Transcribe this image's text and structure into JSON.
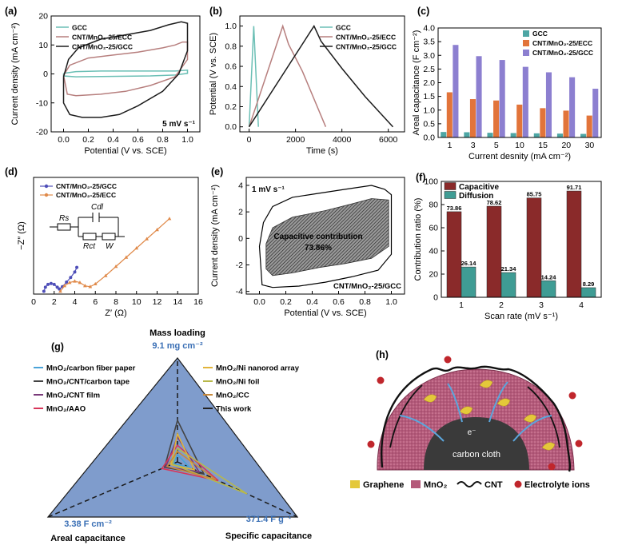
{
  "chart_data": [
    {
      "panel": "(a)",
      "type": "line",
      "xlabel": "Potential (V vs. SCE)",
      "ylabel": "Current density (mA cm⁻²)",
      "xlim": [
        -0.1,
        1.1
      ],
      "ylim": [
        -20,
        20
      ],
      "xticks": [
        "0.0",
        "0.2",
        "0.4",
        "0.6",
        "0.8",
        "1.0"
      ],
      "xtick_values": [
        0,
        0.2,
        0.4,
        0.6,
        0.8,
        1.0
      ],
      "yticks": [
        "-20",
        "-10",
        "0",
        "10",
        "20"
      ],
      "ytick_values": [
        -20,
        -10,
        0,
        10,
        20
      ],
      "annotation": "5 mV s⁻¹",
      "legend_position": "top-left",
      "series": [
        {
          "name": "GCC",
          "color": "#6bbfb5",
          "points": [
            [
              0,
              0.2
            ],
            [
              0.1,
              0.8
            ],
            [
              0.3,
              1.0
            ],
            [
              0.5,
              1.0
            ],
            [
              0.7,
              1.0
            ],
            [
              0.9,
              1.0
            ],
            [
              1.0,
              1.3
            ],
            [
              1.0,
              0.2
            ],
            [
              0.9,
              -0.4
            ],
            [
              0.7,
              -0.7
            ],
            [
              0.5,
              -0.8
            ],
            [
              0.3,
              -0.9
            ],
            [
              0.1,
              -1.0
            ],
            [
              0.0,
              -0.7
            ],
            [
              0,
              0.2
            ]
          ]
        },
        {
          "name": "CNT/MnO₂-25/ECC",
          "color": "#b77f7e",
          "points": [
            [
              0,
              -0.5
            ],
            [
              0.05,
              3
            ],
            [
              0.2,
              5.5
            ],
            [
              0.4,
              6.5
            ],
            [
              0.6,
              7.5
            ],
            [
              0.8,
              9
            ],
            [
              0.9,
              10
            ],
            [
              0.96,
              11
            ],
            [
              1.0,
              11
            ],
            [
              1.0,
              5
            ],
            [
              0.9,
              -1
            ],
            [
              0.7,
              -4
            ],
            [
              0.5,
              -6
            ],
            [
              0.3,
              -7
            ],
            [
              0.1,
              -7.5
            ],
            [
              0.03,
              -7
            ],
            [
              0,
              -0.5
            ]
          ]
        },
        {
          "name": "CNT/MnO₂-25/GCC",
          "color": "#1c1c1c",
          "points": [
            [
              0,
              -1
            ],
            [
              0.04,
              5
            ],
            [
              0.12,
              9
            ],
            [
              0.3,
              12
            ],
            [
              0.5,
              13.5
            ],
            [
              0.7,
              15
            ],
            [
              0.85,
              17
            ],
            [
              0.95,
              18
            ],
            [
              1.0,
              17.5
            ],
            [
              1.0,
              8
            ],
            [
              0.93,
              0
            ],
            [
              0.8,
              -6
            ],
            [
              0.6,
              -11
            ],
            [
              0.45,
              -14
            ],
            [
              0.3,
              -15
            ],
            [
              0.15,
              -15
            ],
            [
              0.05,
              -14
            ],
            [
              0,
              -10
            ],
            [
              0,
              -1
            ]
          ]
        }
      ]
    },
    {
      "panel": "(b)",
      "type": "line",
      "xlabel": "Time (s)",
      "ylabel": "Potential (V vs. SCE)",
      "xlim": [
        -400,
        6700
      ],
      "ylim": [
        -0.05,
        1.1
      ],
      "xticks": [
        "0",
        "2000",
        "4000",
        "6000"
      ],
      "xtick_values": [
        0,
        2000,
        4000,
        6000
      ],
      "yticks": [
        "0.0",
        "0.2",
        "0.4",
        "0.6",
        "0.8",
        "1.0"
      ],
      "ytick_values": [
        0,
        0.2,
        0.4,
        0.6,
        0.8,
        1.0
      ],
      "legend_position": "top-right",
      "series": [
        {
          "name": "GCC",
          "color": "#6bbfb5",
          "points": [
            [
              0,
              0
            ],
            [
              200,
              1.0
            ],
            [
              400,
              0
            ]
          ]
        },
        {
          "name": "CNT/MnO₂-25/ECC",
          "color": "#b77f7e",
          "points": [
            [
              0,
              0
            ],
            [
              1450,
              1.0
            ],
            [
              1700,
              0.82
            ],
            [
              2300,
              0.55
            ],
            [
              3300,
              0
            ]
          ]
        },
        {
          "name": "CNT/MnO₂-25/GCC",
          "color": "#1c1c1c",
          "points": [
            [
              0,
              0
            ],
            [
              2800,
              1.0
            ],
            [
              3100,
              0.85
            ],
            [
              4000,
              0.58
            ],
            [
              5000,
              0.3
            ],
            [
              6200,
              0
            ]
          ]
        }
      ]
    },
    {
      "panel": "(c)",
      "type": "bar",
      "xlabel": "Current desnity (mA cm⁻²)",
      "ylabel": "Areal capacitance (F cm⁻²)",
      "ylim": [
        0,
        4
      ],
      "yticks": [
        "0.0",
        "0.5",
        "1.0",
        "1.5",
        "2.0",
        "2.5",
        "3.0",
        "3.5",
        "4.0"
      ],
      "ytick_values": [
        0,
        0.5,
        1.0,
        1.5,
        2.0,
        2.5,
        3.0,
        3.5,
        4.0
      ],
      "categories": [
        "1",
        "3",
        "5",
        "10",
        "15",
        "20",
        "30"
      ],
      "legend_position": "top-right",
      "series": [
        {
          "name": "GCC",
          "color": "#4da6a4",
          "values": [
            0.2,
            0.19,
            0.17,
            0.16,
            0.15,
            0.14,
            0.13
          ]
        },
        {
          "name": "CNT/MnO₂-25/ECC",
          "color": "#e2743a",
          "values": [
            1.65,
            1.4,
            1.35,
            1.2,
            1.07,
            0.98,
            0.8
          ]
        },
        {
          "name": "CNT/MnO₂-25/GCC",
          "color": "#8c7fd0",
          "values": [
            3.38,
            2.97,
            2.83,
            2.58,
            2.38,
            2.2,
            1.78
          ]
        }
      ]
    },
    {
      "panel": "(d)",
      "type": "scatter",
      "xlabel": "Z′ (Ω)",
      "ylabel": "−Z″ (Ω)",
      "xlim": [
        0,
        16
      ],
      "ylim": [
        -0.2,
        12.5
      ],
      "xticks": [
        "0",
        "2",
        "4",
        "6",
        "8",
        "10",
        "12",
        "14",
        "16"
      ],
      "xtick_values": [
        0,
        2,
        4,
        6,
        8,
        10,
        12,
        14,
        16
      ],
      "circuit_labels": [
        "Rs",
        "Cdl",
        "Rct",
        "W"
      ],
      "legend_position": "top-left",
      "series": [
        {
          "name": "CNT/MnO₂-25/GCC",
          "color": "#4e4eb8",
          "points": [
            [
              1.0,
              0.1
            ],
            [
              1.15,
              0.55
            ],
            [
              1.4,
              0.85
            ],
            [
              1.7,
              0.95
            ],
            [
              2.0,
              0.85
            ],
            [
              2.3,
              0.55
            ],
            [
              2.5,
              0.35
            ],
            [
              2.8,
              0.6
            ],
            [
              3.2,
              1.1
            ],
            [
              3.6,
              1.6
            ],
            [
              4.0,
              2.2
            ],
            [
              4.2,
              2.7
            ]
          ]
        },
        {
          "name": "CNT/MnO₂-25/ECC",
          "color": "#e08a4a",
          "points": [
            [
              2.6,
              0.1
            ],
            [
              3.0,
              0.7
            ],
            [
              3.5,
              1.05
            ],
            [
              4.0,
              1.2
            ],
            [
              4.5,
              1.05
            ],
            [
              5.0,
              0.7
            ],
            [
              5.5,
              0.6
            ],
            [
              6.0,
              0.9
            ],
            [
              7.0,
              1.8
            ],
            [
              8.0,
              2.8
            ],
            [
              9.0,
              3.8
            ],
            [
              10.0,
              4.8
            ],
            [
              11.0,
              5.8
            ],
            [
              12.0,
              6.8
            ],
            [
              13.2,
              8.0
            ]
          ]
        }
      ]
    },
    {
      "panel": "(e)",
      "type": "area",
      "xlabel": "Potential (V vs. SCE)",
      "ylabel": "Current density (mA cm⁻²)",
      "xlim": [
        -0.1,
        1.1
      ],
      "ylim": [
        -4.2,
        4.6
      ],
      "xticks": [
        "0.0",
        "0.2",
        "0.4",
        "0.6",
        "0.8",
        "1.0"
      ],
      "xtick_values": [
        0,
        0.2,
        0.4,
        0.6,
        0.8,
        1.0
      ],
      "yticks": [
        "-4",
        "-2",
        "0",
        "2",
        "4"
      ],
      "ytick_values": [
        -4,
        -2,
        0,
        2,
        4
      ],
      "annotation": "1 mV s⁻¹",
      "sample_label": "CNT/MnO₂-25/GCC",
      "area_label": "Capacitive contribution",
      "area_value": "73.86%",
      "total_curve": [
        [
          0,
          -0.6
        ],
        [
          0.03,
          1.2
        ],
        [
          0.1,
          2.4
        ],
        [
          0.25,
          3.1
        ],
        [
          0.45,
          3.4
        ],
        [
          0.65,
          3.7
        ],
        [
          0.85,
          4.0
        ],
        [
          0.95,
          3.7
        ],
        [
          1.0,
          3.3
        ],
        [
          1.0,
          -1.2
        ],
        [
          0.9,
          -2.4
        ],
        [
          0.7,
          -2.9
        ],
        [
          0.5,
          -3.3
        ],
        [
          0.3,
          -3.6
        ],
        [
          0.1,
          -3.7
        ],
        [
          0.02,
          -3.5
        ],
        [
          0,
          -0.6
        ]
      ],
      "capacitive_curve": [
        [
          0.05,
          -0.4
        ],
        [
          0.1,
          0.8
        ],
        [
          0.25,
          1.6
        ],
        [
          0.5,
          2.1
        ],
        [
          0.7,
          2.6
        ],
        [
          0.85,
          3.0
        ],
        [
          0.98,
          2.9
        ],
        [
          0.98,
          -0.6
        ],
        [
          0.85,
          -1.5
        ],
        [
          0.65,
          -1.9
        ],
        [
          0.45,
          -2.2
        ],
        [
          0.25,
          -2.6
        ],
        [
          0.1,
          -2.8
        ],
        [
          0.05,
          -2.3
        ],
        [
          0.05,
          -0.4
        ]
      ]
    },
    {
      "panel": "(f)",
      "type": "bar",
      "xlabel": "Scan rate (mV s⁻¹)",
      "ylabel": "Contribution ratio (%)",
      "ylim": [
        0,
        100
      ],
      "yticks": [
        "0",
        "20",
        "40",
        "60",
        "80",
        "100"
      ],
      "ytick_values": [
        0,
        20,
        40,
        60,
        80,
        100
      ],
      "categories": [
        "1",
        "2",
        "3",
        "4"
      ],
      "legend_position": "top-left",
      "series": [
        {
          "name": "Capacitive",
          "color": "#8a2a2a",
          "values": [
            73.86,
            78.62,
            85.75,
            91.71
          ],
          "labels": [
            "73.86",
            "78.62",
            "85.75",
            "91.71"
          ]
        },
        {
          "name": "Diffusion",
          "color": "#3f9c94",
          "values": [
            26.14,
            21.34,
            14.24,
            8.29
          ],
          "labels": [
            "26.14",
            "21.34",
            "14.24",
            "8.29"
          ]
        }
      ]
    },
    {
      "panel": "(g)",
      "type": "radar",
      "axes": [
        {
          "name": "Mass loading",
          "max_label": "9.1 mg cm⁻²"
        },
        {
          "name": "Specific capacitance",
          "max_label": "371.4 F g⁻¹"
        },
        {
          "name": "Areal capacitance",
          "max_label": "3.38 F cm⁻²"
        }
      ],
      "fill_color": "#7f9ccc",
      "series": [
        {
          "name": "MnO₂/carbon fiber paper",
          "color": "#4aa3d8",
          "values": [
            0.07,
            0.1,
            0.03
          ]
        },
        {
          "name": "MnO₂/CNT/carbon tape",
          "color": "#444444",
          "values": [
            0.4,
            0.22,
            0.1
          ]
        },
        {
          "name": "MnO₂/CNT film",
          "color": "#7a3a7a",
          "values": [
            0.24,
            0.18,
            0.09
          ]
        },
        {
          "name": "MnO₂/AAO",
          "color": "#d8365a",
          "values": [
            0.16,
            0.34,
            0.12
          ]
        },
        {
          "name": "MnO₂/Ni nanorod array",
          "color": "#e2b43a",
          "values": [
            0.27,
            0.14,
            0.05
          ]
        },
        {
          "name": "MnO₂/Ni foil",
          "color": "#b8b84a",
          "values": [
            0.13,
            0.58,
            0.04
          ]
        },
        {
          "name": "MnO₂/CC",
          "color": "#c88a3c",
          "values": [
            0.1,
            0.32,
            0.08
          ]
        },
        {
          "name": "This work",
          "color": "#222222",
          "values": [
            1.0,
            1.0,
            1.0
          ]
        }
      ]
    }
  ],
  "panel_h": {
    "label": "(h)",
    "center_label": "carbon cloth",
    "electron_label": "e⁻",
    "legend": [
      "Graphene",
      "MnO₂",
      "CNT",
      "Electrolyte ions"
    ],
    "colors": {
      "graphene": "#e4c83a",
      "mno2": "#b45a7a",
      "cnt": "#111111",
      "ions": "#c0262c",
      "cloth": "#3a3a3a",
      "arrows": "#5ba6dc"
    }
  }
}
